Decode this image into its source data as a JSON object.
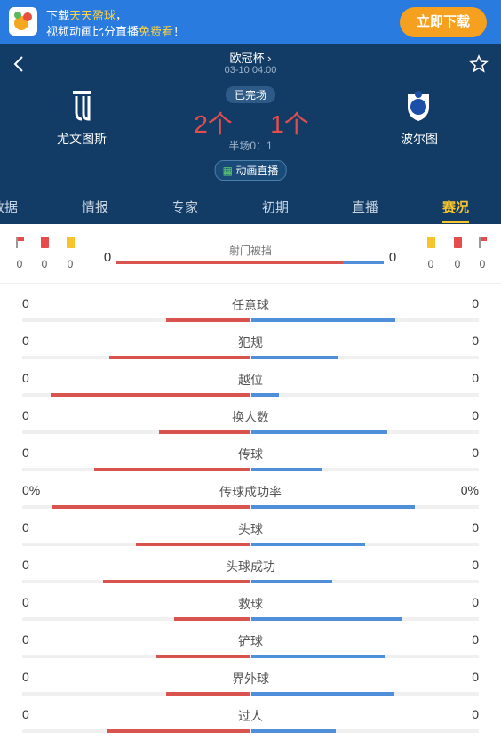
{
  "banner": {
    "line1": [
      "下载",
      "天天盈球",
      "，"
    ],
    "line2": [
      "视频动画比分直播",
      "免费看",
      "！"
    ],
    "button": "立即下载"
  },
  "match": {
    "competition": "欧冠杯",
    "time": "03-10 04:00",
    "status": "已完场",
    "home": {
      "name": "尤文图斯",
      "score": "2个"
    },
    "away": {
      "name": "波尔图",
      "score": "1个"
    },
    "halftime": "半场0：1",
    "live": "动画直播"
  },
  "tabs": [
    "数据",
    "情报",
    "专家",
    "初期",
    "直播",
    "赛况"
  ],
  "active_tab": 5,
  "summary": {
    "home_counts": [
      "0",
      "0",
      "0"
    ],
    "away_counts": [
      "0",
      "0",
      "0"
    ],
    "label": "射门被挡",
    "home_value": "0",
    "away_value": "0"
  },
  "stats": [
    {
      "label": "任意球",
      "home": "0",
      "away": "0"
    },
    {
      "label": "犯规",
      "home": "0",
      "away": "0"
    },
    {
      "label": "越位",
      "home": "0",
      "away": "0"
    },
    {
      "label": "换人数",
      "home": "0",
      "away": "0"
    },
    {
      "label": "传球",
      "home": "0",
      "away": "0"
    },
    {
      "label": "传球成功率",
      "home": "0%",
      "away": "0%"
    },
    {
      "label": "头球",
      "home": "0",
      "away": "0"
    },
    {
      "label": "头球成功",
      "home": "0",
      "away": "0"
    },
    {
      "label": "救球",
      "home": "0",
      "away": "0"
    },
    {
      "label": "铲球",
      "home": "0",
      "away": "0"
    },
    {
      "label": "界外球",
      "home": "0",
      "away": "0"
    },
    {
      "label": "过人",
      "home": "0",
      "away": "0"
    }
  ]
}
